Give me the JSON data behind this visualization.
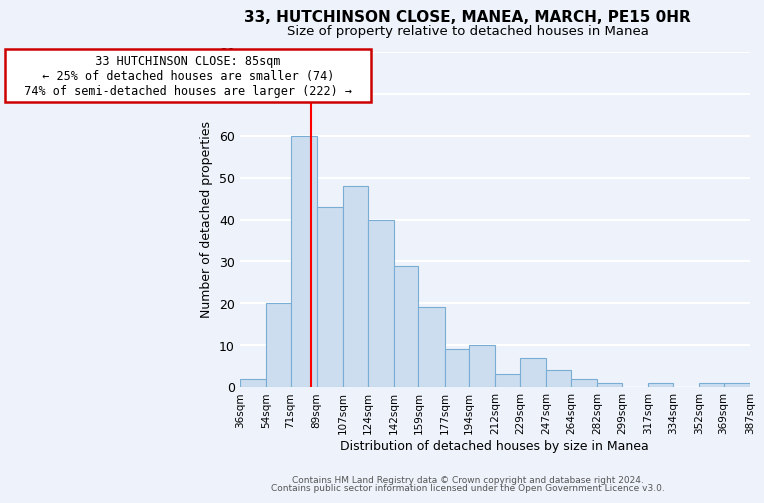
{
  "title": "33, HUTCHINSON CLOSE, MANEA, MARCH, PE15 0HR",
  "subtitle": "Size of property relative to detached houses in Manea",
  "xlabel": "Distribution of detached houses by size in Manea",
  "ylabel": "Number of detached properties",
  "bar_color": "#ccddf0",
  "bar_edge_color": "#7aadd4",
  "property_line_x": 85,
  "property_line_color": "red",
  "annotation_title": "33 HUTCHINSON CLOSE: 85sqm",
  "annotation_line1": "← 25% of detached houses are smaller (74)",
  "annotation_line2": "74% of semi-detached houses are larger (222) →",
  "annotation_box_color": "white",
  "annotation_box_edge": "#cc0000",
  "bin_edges": [
    36,
    54,
    71,
    89,
    107,
    124,
    142,
    159,
    177,
    194,
    212,
    229,
    247,
    264,
    282,
    299,
    317,
    334,
    352,
    369,
    387
  ],
  "bin_heights": [
    2,
    20,
    60,
    43,
    48,
    40,
    29,
    19,
    9,
    10,
    3,
    7,
    4,
    2,
    1,
    0,
    1,
    0,
    1,
    1
  ],
  "ylim": [
    0,
    80
  ],
  "yticks": [
    0,
    10,
    20,
    30,
    40,
    50,
    60,
    70,
    80
  ],
  "footer_line1": "Contains HM Land Registry data © Crown copyright and database right 2024.",
  "footer_line2": "Contains public sector information licensed under the Open Government Licence v3.0.",
  "background_color": "#eef2fa",
  "grid_color": "white"
}
